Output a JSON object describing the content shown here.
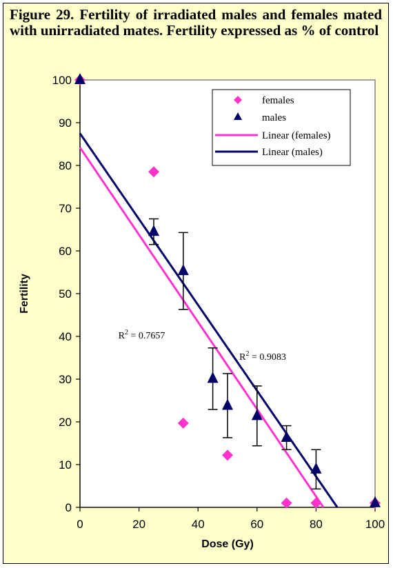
{
  "title": "Figure 29. Fertility of irradiated males and females mated with unirradiated mates. Fertility expressed as % of control",
  "chart_data": {
    "type": "scatter",
    "title": "Figure 29. Fertility of irradiated males and females mated with unirradiated mates. Fertility expressed as % of control",
    "xlabel": "Dose (Gy)",
    "ylabel": "Fertility",
    "xlim": [
      0,
      100
    ],
    "ylim": [
      0,
      100
    ],
    "x_ticks": [
      "0",
      "20",
      "40",
      "60",
      "80",
      "100"
    ],
    "y_ticks": [
      "0",
      "10",
      "20",
      "30",
      "40",
      "50",
      "60",
      "70",
      "80",
      "90",
      "100"
    ],
    "legend_position": "top-right",
    "grid": false,
    "series": [
      {
        "name": "females",
        "marker": "diamond",
        "color": "#ff33cc",
        "points": [
          {
            "x": 0,
            "y": 100
          },
          {
            "x": 25,
            "y": 78.5
          },
          {
            "x": 35,
            "y": 19.7
          },
          {
            "x": 50,
            "y": 12.2
          },
          {
            "x": 70,
            "y": 1
          },
          {
            "x": 80,
            "y": 1
          },
          {
            "x": 100,
            "y": 1
          }
        ]
      },
      {
        "name": "males",
        "marker": "triangle",
        "color": "#000066",
        "points": [
          {
            "x": 0,
            "y": 100,
            "err": 0
          },
          {
            "x": 25,
            "y": 64.5,
            "err": 3
          },
          {
            "x": 35,
            "y": 55.3,
            "err": 9
          },
          {
            "x": 45,
            "y": 30.1,
            "err": 7.2
          },
          {
            "x": 50,
            "y": 23.8,
            "err": 7.5
          },
          {
            "x": 60,
            "y": 21.4,
            "err": 7
          },
          {
            "x": 70,
            "y": 16.3,
            "err": 2.8
          },
          {
            "x": 80,
            "y": 8.9,
            "err": 4.6
          },
          {
            "x": 100,
            "y": 1,
            "err": 0
          }
        ]
      }
    ],
    "trendlines": [
      {
        "name": "Linear (females)",
        "color": "#ff33cc",
        "x_start": 0,
        "y_start": 84.2,
        "x_end": 82.5,
        "y_end": 0,
        "r2_label": "R² = 0.7657",
        "r2_prefix": "R",
        "r2_sup": "2",
        "r2_value": " = 0.7657",
        "r2_at": {
          "x": 13,
          "y": 39.5
        }
      },
      {
        "name": "Linear (males)",
        "color": "#000066",
        "x_start": 0,
        "y_start": 87.5,
        "x_end": 87.2,
        "y_end": 0,
        "r2_label": "R² = 0.9083",
        "r2_prefix": "R",
        "r2_sup": "2",
        "r2_value": " = 0.9083",
        "r2_at": {
          "x": 54,
          "y": 34.5
        }
      }
    ]
  }
}
